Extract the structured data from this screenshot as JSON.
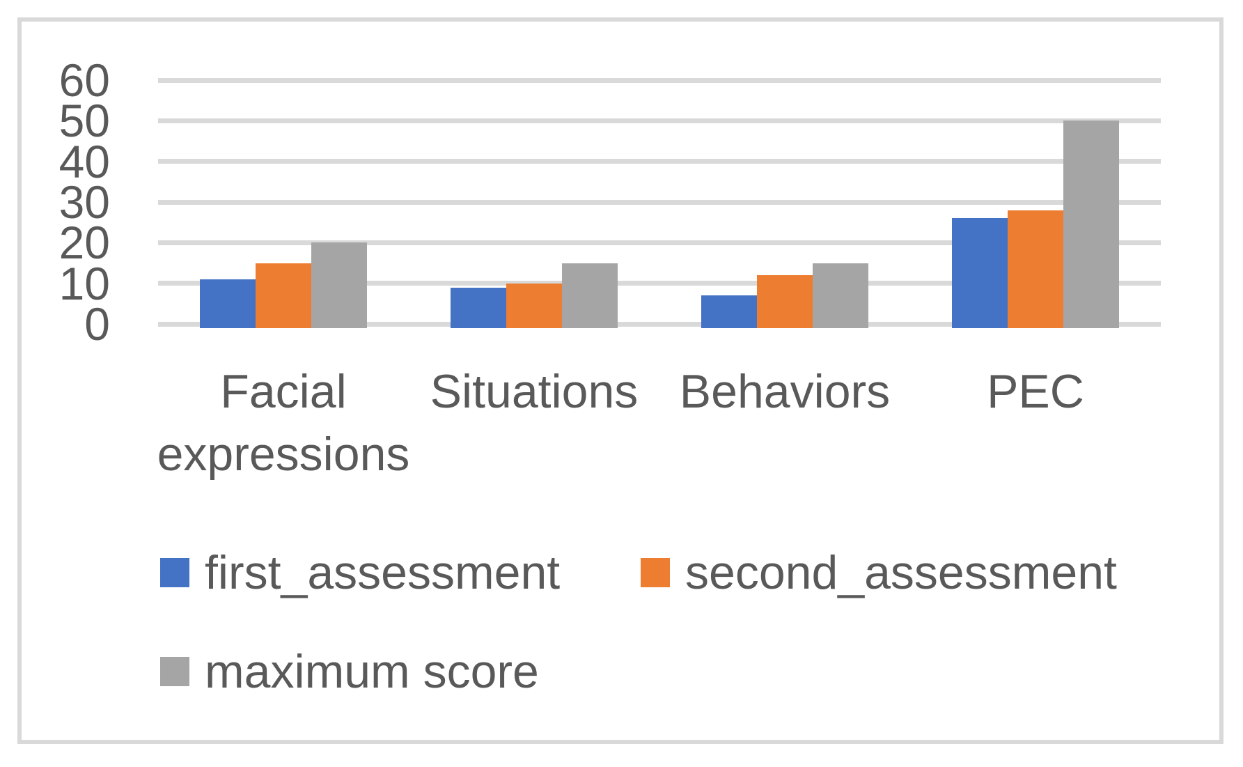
{
  "chart_data": {
    "type": "bar",
    "title": "",
    "categories": [
      "Facial expressions",
      "Situations",
      "Behaviors",
      "PEC"
    ],
    "category_label_lines": [
      [
        "Facial",
        "expressions"
      ],
      [
        "Situations"
      ],
      [
        "Behaviors"
      ],
      [
        "PEC"
      ]
    ],
    "series": [
      {
        "name": "first_assessment",
        "color": "#4472C4",
        "values": [
          11,
          9,
          7,
          26
        ]
      },
      {
        "name": "second_assessment",
        "color": "#ED7D31",
        "values": [
          15,
          10,
          12,
          28
        ]
      },
      {
        "name": "maximum score",
        "color": "#A5A5A5",
        "values": [
          20,
          15,
          15,
          50
        ]
      }
    ],
    "xlabel": "",
    "ylabel": "",
    "y_axis": {
      "min": 0,
      "max": 60,
      "step": 10,
      "tick_labels": [
        "0",
        "10",
        "20",
        "30",
        "40",
        "50",
        "60"
      ]
    },
    "grid": true,
    "legend_position": "bottom",
    "colors": {
      "gridline": "#D9D9D9",
      "axis_line": "#D9D9D9",
      "text": "#595959",
      "frame_border": "#D9D9D9",
      "background": "#FFFFFF"
    }
  }
}
